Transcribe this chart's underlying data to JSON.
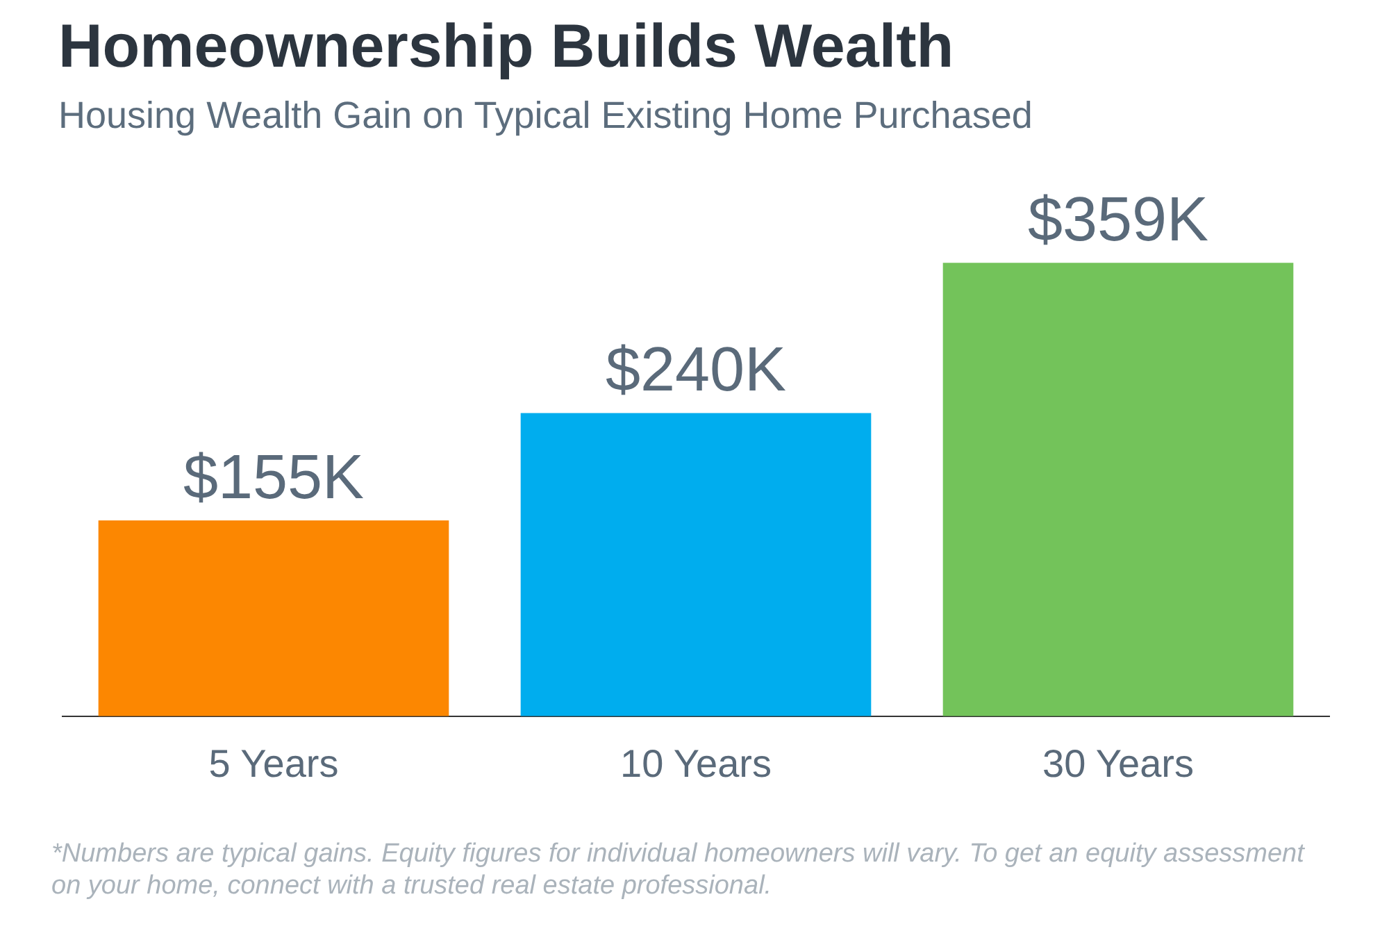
{
  "chart_data": {
    "type": "bar",
    "title": "Homeownership Builds Wealth",
    "subtitle": "Housing Wealth Gain on Typical Existing Home Purchased",
    "categories": [
      "5 Years",
      "10 Years",
      "30 Years"
    ],
    "values": [
      155,
      240,
      359
    ],
    "colors": [
      "#fc8701",
      "#00adee",
      "#73c35a"
    ],
    "value_labels": [
      "$155K",
      "$240K",
      "$359K"
    ],
    "annotations": [
      "*Numbers are typical gains. Equity figures for individual homeowners will vary. To get an equity assessment on your home, connect with a trusted real estate professional."
    ]
  }
}
